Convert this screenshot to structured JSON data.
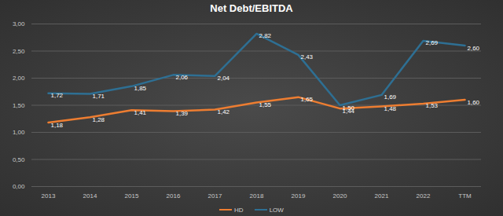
{
  "chart_data": {
    "type": "line",
    "title": "Net Debt/EBITDA",
    "categories": [
      "2013",
      "2014",
      "2015",
      "2016",
      "2017",
      "2018",
      "2019",
      "2020",
      "2021",
      "2022",
      "TTM"
    ],
    "series": [
      {
        "name": "HD",
        "color": "#ed7d31",
        "values": [
          1.18,
          1.28,
          1.41,
          1.39,
          1.42,
          1.55,
          1.65,
          1.44,
          1.48,
          1.53,
          1.6
        ],
        "value_labels": [
          "1,18",
          "1,28",
          "1,41",
          "1,39",
          "1,42",
          "1,55",
          "1,65",
          "1,44",
          "1,48",
          "1,53",
          "1,60"
        ]
      },
      {
        "name": "LOW",
        "color": "#2e6f93",
        "values": [
          1.72,
          1.71,
          1.85,
          2.06,
          2.04,
          2.82,
          2.43,
          1.5,
          1.69,
          2.69,
          2.6
        ],
        "value_labels": [
          "1,72",
          "1,71",
          "1,85",
          "2,06",
          "2,04",
          "2,82",
          "2,43",
          "1,50",
          "1,69",
          "2,69",
          "2,60"
        ]
      }
    ],
    "ylim": [
      0,
      3
    ],
    "yticks": [
      {
        "value": 0,
        "label": "0,00"
      },
      {
        "value": 0.5,
        "label": "0,50"
      },
      {
        "value": 1,
        "label": "1,00"
      },
      {
        "value": 1.5,
        "label": "1,50"
      },
      {
        "value": 2,
        "label": "2,00"
      },
      {
        "value": 2.5,
        "label": "2,50"
      },
      {
        "value": 3,
        "label": "3,00"
      }
    ],
    "grid": true,
    "legend": "bottom",
    "data_labels": true
  }
}
